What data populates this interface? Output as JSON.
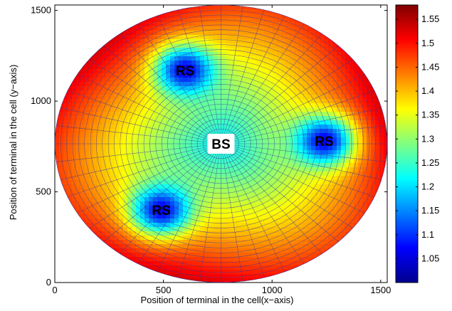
{
  "chart_data": {
    "type": "heatmap",
    "title": "",
    "xlabel": "Position of terminal in the cell(x−axis)",
    "ylabel": "Position of terminal in the cell (y−axis)",
    "xlim": [
      0,
      1530
    ],
    "ylim": [
      0,
      1530
    ],
    "x_ticks": [
      "0",
      "500",
      "1000",
      "1500"
    ],
    "y_ticks": [
      "0",
      "500",
      "1000",
      "1500"
    ],
    "colorbar": {
      "range": [
        1.0,
        1.58
      ],
      "ticks": [
        "1.05",
        "1.1",
        "1.15",
        "1.2",
        "1.25",
        "1.3",
        "1.35",
        "1.4",
        "1.45",
        "1.5",
        "1.55"
      ],
      "colormap": "jet"
    },
    "cell": {
      "center": [
        765,
        765
      ],
      "radius": 765,
      "shape": "ellipse"
    },
    "annotations": [
      {
        "text": "BS",
        "x": 765,
        "y": 765
      },
      {
        "text": "RS",
        "x": 1240,
        "y": 780
      },
      {
        "text": "RS",
        "x": 600,
        "y": 1170
      },
      {
        "text": "RS",
        "x": 490,
        "y": 400
      }
    ],
    "surface": {
      "description_values": "ratio grows radially from BS; minima near relay stations",
      "bs_value": 1.22,
      "rs_value": 1.06,
      "edge_value": 1.5
    }
  },
  "colors": {
    "grid_line": "#3a3aa0",
    "background": "#ffffff"
  }
}
